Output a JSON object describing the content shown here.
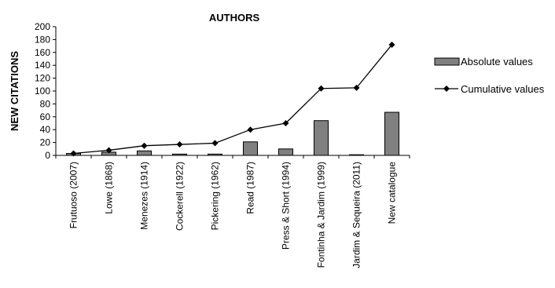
{
  "chart_data": {
    "type": "bar",
    "title": "AUTHORS",
    "xlabel": "",
    "ylabel": "NEW CITATIONS",
    "ylim": [
      0,
      200
    ],
    "yticks": [
      0,
      20,
      40,
      60,
      80,
      100,
      120,
      140,
      160,
      180,
      200
    ],
    "categories": [
      "Frutuoso (2007)",
      "Lowe (1868)",
      "Menezes (1914)",
      "Cockerell (1922)",
      "Pickering (1962)",
      "Read (1987)",
      "Press & Short (1994)",
      "Fontinha & Jardim (1999)",
      "Jardim & Sequeira (2011)",
      "New catalogue"
    ],
    "series": [
      {
        "name": "Absolute values",
        "type": "bar",
        "values": [
          3,
          5,
          7,
          2,
          2,
          21,
          10,
          54,
          1,
          67
        ]
      },
      {
        "name": "Cumulative values",
        "type": "line",
        "values": [
          3,
          8,
          15,
          17,
          19,
          40,
          50,
          104,
          105,
          172
        ]
      }
    ],
    "legend_position": "right",
    "grid": false,
    "colors": {
      "bar": "#808080",
      "line": "#000000"
    }
  }
}
